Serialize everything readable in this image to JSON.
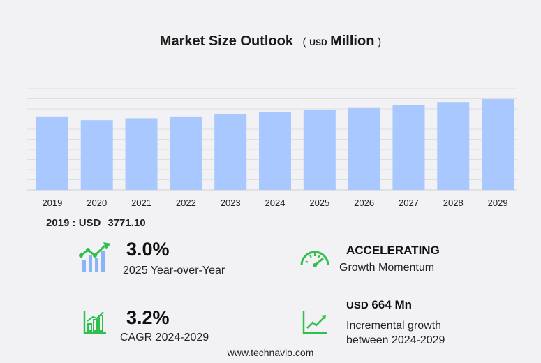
{
  "title": {
    "main": "Market Size Outlook",
    "unit_open": "(",
    "unit_currency": "USD",
    "unit_scale": "Million",
    "unit_close": ")"
  },
  "chart_data": {
    "type": "bar",
    "categories": [
      "2019",
      "2020",
      "2021",
      "2022",
      "2023",
      "2024",
      "2025",
      "2026",
      "2027",
      "2028",
      "2029"
    ],
    "values": [
      3771.1,
      3580,
      3680,
      3770,
      3880,
      3990,
      4110,
      4240,
      4370,
      4510,
      4660
    ],
    "ylim": [
      0,
      5200
    ],
    "bar_color": "#a8c8ff",
    "grid": true,
    "title": "Market Size Outlook"
  },
  "base_year": {
    "label": "2019 : USD",
    "value": "3771.10"
  },
  "stats": {
    "yoy": {
      "value": "3.0%",
      "label": "2025 Year-over-Year",
      "icon": "growth-chart-icon"
    },
    "momentum": {
      "value": "ACCELERATING",
      "label": "Growth Momentum",
      "icon": "speedometer-icon"
    },
    "cagr": {
      "value": "3.2%",
      "label": "CAGR 2024-2029",
      "icon": "bar-chart-icon"
    },
    "incremental": {
      "currency": "USD",
      "value": "664 Mn",
      "label_line1": "Incremental growth",
      "label_line2": "between 2024-2029",
      "icon": "trend-line-icon"
    }
  },
  "colors": {
    "icon_green": "#2fbf4c",
    "icon_blue": "#8ab4f8",
    "bar": "#a8c8ff"
  },
  "footer": "www.technavio.com"
}
